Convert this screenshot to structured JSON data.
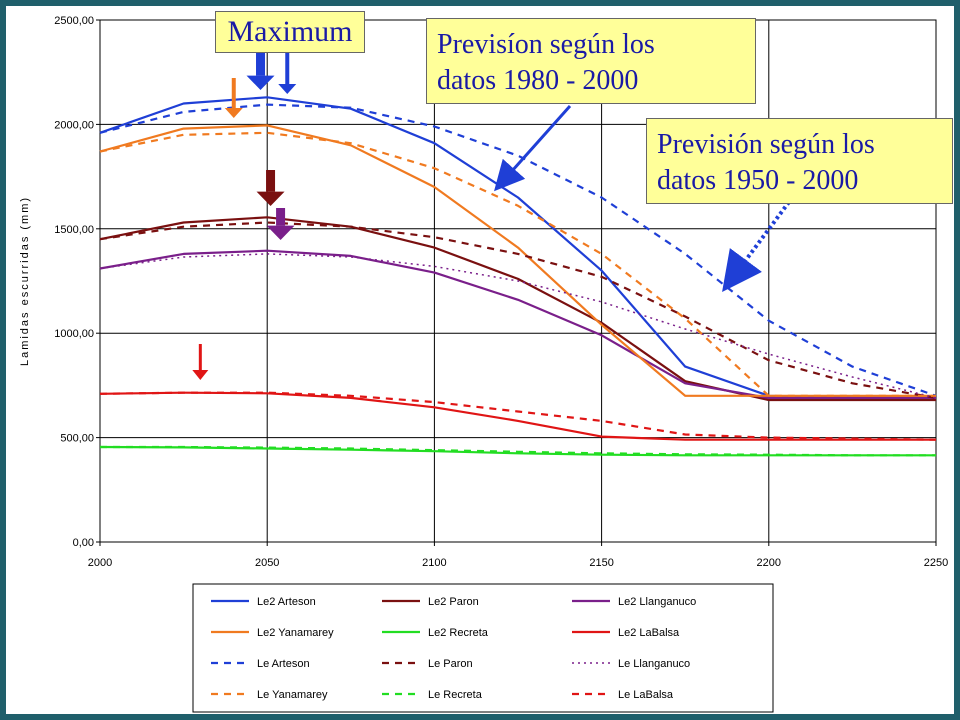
{
  "callouts": {
    "maximum": "Maximum",
    "prevision_1980_l1": "Previsíon según los",
    "prevision_1980_l2": "datos 1980 - 2000",
    "prevision_1950_l1": "Previsión según los",
    "prevision_1950_l2": "datos 1950 - 2000"
  },
  "chart_data": {
    "type": "line",
    "title": "",
    "xlabel": "",
    "ylabel": "Lamidas escurridas (mm)",
    "xlim": [
      2000,
      2250
    ],
    "ylim": [
      0,
      2500
    ],
    "xticks": [
      "2000",
      "2050",
      "2100",
      "2150",
      "2200",
      "2250"
    ],
    "yticks": [
      "0,00",
      "500,00",
      "1000,00",
      "1500,00",
      "2000,00",
      "2500,00"
    ],
    "grid": true,
    "legend_position": "bottom",
    "series": [
      {
        "name": "Le2 Arteson",
        "color": "#1f3fd6",
        "style": "solid",
        "x": [
          2000,
          2025,
          2050,
          2075,
          2100,
          2125,
          2150,
          2175,
          2200,
          2225,
          2250
        ],
        "y": [
          1960,
          2100,
          2130,
          2075,
          1910,
          1650,
          1300,
          840,
          700,
          690,
          690
        ]
      },
      {
        "name": "Le2 Paron",
        "color": "#7a1010",
        "style": "solid",
        "x": [
          2000,
          2025,
          2050,
          2075,
          2100,
          2125,
          2150,
          2175,
          2200,
          2225,
          2250
        ],
        "y": [
          1450,
          1530,
          1555,
          1510,
          1410,
          1260,
          1050,
          770,
          680,
          680,
          680
        ]
      },
      {
        "name": "Le2 Llanganuco",
        "color": "#7a1f8a",
        "style": "solid",
        "x": [
          2000,
          2025,
          2050,
          2075,
          2100,
          2125,
          2150,
          2175,
          2200,
          2225,
          2250
        ],
        "y": [
          1310,
          1380,
          1395,
          1370,
          1290,
          1160,
          990,
          760,
          690,
          690,
          690
        ]
      },
      {
        "name": "Le2 Yanamarey",
        "color": "#f07a20",
        "style": "solid",
        "x": [
          2000,
          2025,
          2050,
          2075,
          2100,
          2125,
          2150,
          2175,
          2200,
          2225,
          2250
        ],
        "y": [
          1870,
          1980,
          1995,
          1900,
          1700,
          1410,
          1040,
          700,
          700,
          700,
          700
        ]
      },
      {
        "name": "Le2 Recreta",
        "color": "#22dd22",
        "style": "solid",
        "x": [
          2000,
          2025,
          2050,
          2075,
          2100,
          2125,
          2150,
          2175,
          2200,
          2225,
          2250
        ],
        "y": [
          455,
          453,
          448,
          442,
          435,
          425,
          418,
          415,
          415,
          415,
          415
        ]
      },
      {
        "name": "Le2 LaBalsa",
        "color": "#e01515",
        "style": "solid",
        "x": [
          2000,
          2025,
          2050,
          2075,
          2100,
          2125,
          2150,
          2175,
          2200,
          2225,
          2250
        ],
        "y": [
          710,
          715,
          712,
          690,
          645,
          580,
          505,
          490,
          490,
          490,
          490
        ]
      },
      {
        "name": "Le Arteson",
        "color": "#1f3fd6",
        "style": "dashed",
        "x": [
          2000,
          2025,
          2050,
          2075,
          2100,
          2125,
          2150,
          2175,
          2200,
          2225,
          2250
        ],
        "y": [
          1960,
          2060,
          2095,
          2080,
          1990,
          1850,
          1650,
          1380,
          1060,
          840,
          700
        ]
      },
      {
        "name": "Le Paron",
        "color": "#7a1010",
        "style": "dashed",
        "x": [
          2000,
          2025,
          2050,
          2075,
          2100,
          2125,
          2150,
          2175,
          2200,
          2225,
          2250
        ],
        "y": [
          1450,
          1510,
          1530,
          1510,
          1460,
          1380,
          1270,
          1080,
          870,
          760,
          690
        ]
      },
      {
        "name": "Le Llanganuco",
        "color": "#7a1f8a",
        "style": "dotted",
        "x": [
          2000,
          2025,
          2050,
          2075,
          2100,
          2125,
          2150,
          2175,
          2200,
          2225,
          2250
        ],
        "y": [
          1310,
          1365,
          1380,
          1365,
          1320,
          1250,
          1150,
          1020,
          900,
          790,
          690
        ]
      },
      {
        "name": "Le Yanamarey",
        "color": "#f07a20",
        "style": "dashed",
        "x": [
          2000,
          2025,
          2050,
          2075,
          2100,
          2125,
          2150,
          2175,
          2200,
          2225,
          2250
        ],
        "y": [
          1870,
          1950,
          1960,
          1910,
          1790,
          1610,
          1380,
          1070,
          700,
          700,
          700
        ]
      },
      {
        "name": "Le Recreta",
        "color": "#22dd22",
        "style": "dashed",
        "x": [
          2000,
          2025,
          2050,
          2075,
          2100,
          2125,
          2150,
          2175,
          2200,
          2225,
          2250
        ],
        "y": [
          455,
          455,
          452,
          448,
          440,
          432,
          425,
          420,
          418,
          415,
          415
        ]
      },
      {
        "name": "Le LaBalsa",
        "color": "#e01515",
        "style": "dashed",
        "x": [
          2000,
          2025,
          2050,
          2075,
          2100,
          2125,
          2150,
          2175,
          2200,
          2225,
          2250
        ],
        "y": [
          710,
          715,
          715,
          700,
          670,
          625,
          580,
          515,
          500,
          495,
          490
        ]
      }
    ],
    "max_arrows": [
      {
        "x": 2048,
        "color": "#1f3fd6"
      },
      {
        "x": 2056,
        "color": "#1f3fd6"
      },
      {
        "x": 2040,
        "color": "#f07a20"
      },
      {
        "x": 2051,
        "color": "#7a1010"
      },
      {
        "x": 2054,
        "color": "#7a1f8a"
      },
      {
        "x": 2030,
        "color": "#e01515"
      }
    ]
  }
}
